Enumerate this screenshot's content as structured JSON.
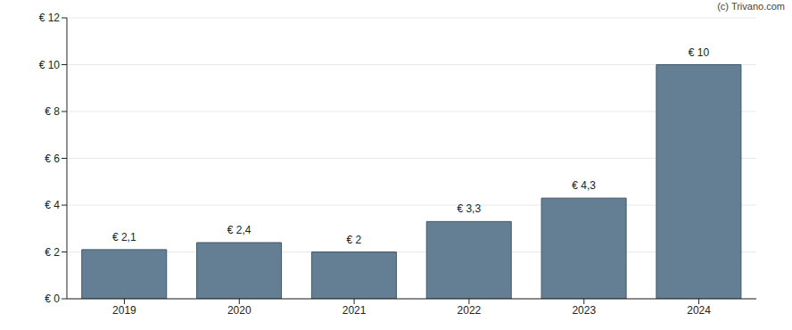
{
  "chart_data": {
    "type": "bar",
    "annotation": "(c) Trivano.com",
    "categories": [
      "2019",
      "2020",
      "2021",
      "2022",
      "2023",
      "2024"
    ],
    "values": [
      2.1,
      2.4,
      2,
      3.3,
      4.3,
      10
    ],
    "value_labels": [
      "€ 2,1",
      "€ 2,4",
      "€ 2",
      "€ 3,3",
      "€ 4,3",
      "€ 10"
    ],
    "data_labels": true,
    "color": "#647f94",
    "ylim": [
      0,
      12
    ],
    "yticks": [
      {
        "value": 0,
        "label": "€ 0"
      },
      {
        "value": 2,
        "label": "€ 2"
      },
      {
        "value": 4,
        "label": "€ 4"
      },
      {
        "value": 6,
        "label": "€ 6"
      },
      {
        "value": 8,
        "label": "€ 8"
      },
      {
        "value": 10,
        "label": "€ 10"
      },
      {
        "value": 12,
        "label": "€ 12"
      }
    ],
    "grid": true
  }
}
